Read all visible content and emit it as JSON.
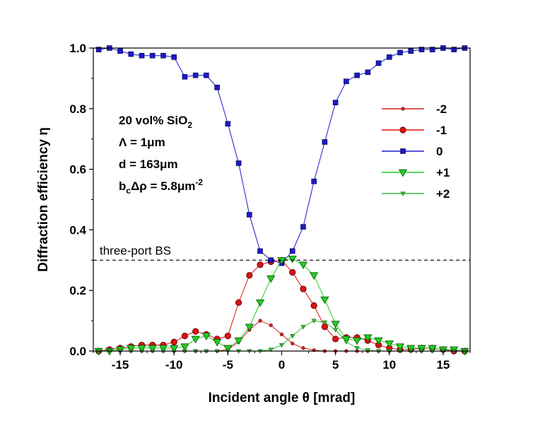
{
  "chart_data": {
    "type": "line",
    "xlabel": "Incident angle θ [mrad]",
    "ylabel": "Diffraction efficiency η",
    "xlim": [
      -17.5,
      17.5
    ],
    "ylim": [
      0.0,
      1.0
    ],
    "xticks": [
      -15,
      -10,
      -5,
      0,
      5,
      10,
      15
    ],
    "xtick_labels": [
      "-15",
      "-10",
      "-5",
      "0",
      "5",
      "10",
      "15"
    ],
    "yticks": [
      0.0,
      0.2,
      0.4,
      0.6,
      0.8,
      1.0
    ],
    "ytick_labels": [
      "0.0",
      "0.2",
      "0.4",
      "0.6",
      "0.8",
      "1.0"
    ],
    "grid": false,
    "legend_position": "right",
    "annotation": {
      "line1": "20 vol% SiO",
      "line1_sub": "2",
      "line2": "Λ = 1μm",
      "line3": "d = 163μm",
      "line4_a": "b",
      "line4_sub": "c",
      "line4_b": "Δρ = 5.8μm",
      "line4_sup": "-2"
    },
    "reference_line": {
      "y": 0.3,
      "label": "three-port BS",
      "style": "dashed"
    },
    "x": [
      -17,
      -16,
      -15,
      -14,
      -13,
      -12,
      -11,
      -10,
      -9,
      -8,
      -7,
      -6,
      -5,
      -4,
      -3,
      -2,
      -1,
      0,
      1,
      2,
      3,
      4,
      5,
      6,
      7,
      8,
      9,
      10,
      11,
      12,
      13,
      14,
      15,
      16,
      17
    ],
    "series": [
      {
        "name": "-2",
        "color": "#cc2222",
        "marker": "circle-small",
        "values": [
          0.0,
          0.0,
          0.0,
          0.0,
          0.0,
          0.0,
          0.0,
          0.0,
          0.0,
          0.0,
          0.0,
          0.0,
          0.005,
          0.03,
          0.07,
          0.1,
          0.085,
          0.055,
          0.025,
          0.01,
          0.003,
          0.0,
          0.0,
          0.0,
          0.0,
          0.0,
          0.0,
          0.0,
          0.0,
          0.0,
          0.0,
          0.0,
          0.0,
          0.0,
          0.0
        ]
      },
      {
        "name": "-1",
        "color": "#dd1111",
        "marker": "circle",
        "values": [
          0.0,
          0.005,
          0.01,
          0.015,
          0.02,
          0.02,
          0.02,
          0.03,
          0.05,
          0.065,
          0.055,
          0.04,
          0.05,
          0.16,
          0.25,
          0.285,
          0.295,
          0.3,
          0.26,
          0.205,
          0.15,
          0.08,
          0.04,
          0.045,
          0.045,
          0.035,
          0.02,
          0.01,
          0.005,
          0.005,
          0.01,
          0.01,
          0.005,
          0.0,
          0.0
        ]
      },
      {
        "name": "0",
        "color": "#1a1acc",
        "marker": "square",
        "values": [
          0.995,
          1.0,
          0.99,
          0.98,
          0.975,
          0.975,
          0.975,
          0.97,
          0.905,
          0.91,
          0.91,
          0.87,
          0.75,
          0.62,
          0.45,
          0.33,
          0.3,
          0.29,
          0.33,
          0.41,
          0.56,
          0.69,
          0.82,
          0.89,
          0.91,
          0.92,
          0.95,
          0.97,
          0.985,
          0.99,
          0.995,
          0.995,
          1.0,
          0.995,
          1.0
        ]
      },
      {
        "name": "+1",
        "color": "#22cc22",
        "marker": "triangle-down",
        "values": [
          0.0,
          0.0,
          0.005,
          0.01,
          0.01,
          0.01,
          0.01,
          0.01,
          0.015,
          0.04,
          0.05,
          0.03,
          0.01,
          0.035,
          0.08,
          0.16,
          0.24,
          0.3,
          0.305,
          0.285,
          0.25,
          0.17,
          0.09,
          0.04,
          0.035,
          0.045,
          0.035,
          0.025,
          0.015,
          0.01,
          0.01,
          0.01,
          0.005,
          0.005,
          0.0
        ]
      },
      {
        "name": "+2",
        "color": "#33bb33",
        "marker": "triangle-down-small",
        "values": [
          0.0,
          0.0,
          0.0,
          0.0,
          0.0,
          0.0,
          0.0,
          0.0,
          0.0,
          0.0,
          0.0,
          0.0,
          0.0,
          0.0,
          0.0,
          0.0,
          0.005,
          0.02,
          0.05,
          0.08,
          0.1,
          0.095,
          0.07,
          0.03,
          0.01,
          0.003,
          0.0,
          0.0,
          0.0,
          0.0,
          0.0,
          0.0,
          0.0,
          0.0,
          0.0
        ]
      }
    ]
  }
}
